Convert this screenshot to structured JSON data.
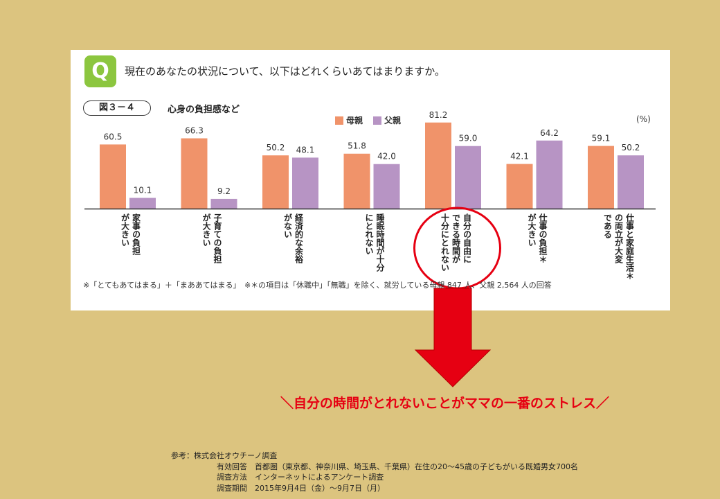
{
  "panel": {
    "q_badge": "Q",
    "question": "現在のあなたの状況について、以下はどれくらいあてはまりますか。",
    "figure_number": "図３－４",
    "figure_title": "心身の負担感など",
    "unit": "(%)",
    "note": "※「とてもあてはまる」＋「まああてはまる」　※＊の項目は「休職中」「無職」を除く、就労している母親 847 人、父親 2,564 人の回答"
  },
  "chart_data": {
    "type": "bar",
    "title": "心身の負担感など",
    "unit": "(%)",
    "categories": [
      "家事の負担が大きい",
      "子育ての負担が大きい",
      "経済的な余裕がない",
      "睡眠時間が十分にとれない",
      "自分の自由にできる時間が十分にとれない",
      "仕事の負担が大きい＊",
      "仕事と家庭生活の両立が大変である＊"
    ],
    "category_lines": [
      [
        "家事の負担",
        "が大きい"
      ],
      [
        "子育ての負担",
        "が大きい"
      ],
      [
        "経済的な余裕",
        "がない"
      ],
      [
        "睡眠時間が十分",
        "にとれない"
      ],
      [
        "自分の自由に",
        "できる時間が",
        "十分にとれない"
      ],
      [
        "仕事の負担＊",
        "が大きい"
      ],
      [
        "仕事と家庭生活＊",
        "の両立が大変",
        "である"
      ]
    ],
    "series": [
      {
        "name": "母親",
        "color": "#f0936a",
        "values": [
          60.5,
          66.3,
          50.2,
          51.8,
          81.2,
          42.1,
          59.1
        ]
      },
      {
        "name": "父親",
        "color": "#b794c4",
        "values": [
          10.1,
          9.2,
          48.1,
          42.0,
          59.0,
          64.2,
          50.2
        ]
      }
    ],
    "value_labels": [
      [
        "60.5",
        "66.3",
        "50.2",
        "51.8",
        "81.2",
        "42.1",
        "59.1"
      ],
      [
        "10.1",
        "9.2",
        "48.1",
        "42.0",
        "59.0",
        "64.2",
        "50.2"
      ]
    ],
    "ylim": [
      0,
      100
    ],
    "legend_position": "top-center",
    "grid": false,
    "highlight_category_index": 4
  },
  "callout": "＼自分の時間がとれないことがママの一番のストレス／",
  "reference": {
    "line1": "参考：株式会社オウチーノ調査",
    "line2": "有効回答　首都圏（東京都、神奈川県、埼玉県、千葉県）在住の20～45歳の子どもがいる既婚男女700名",
    "line3": "調査方法　インターネットによるアンケート調査",
    "line4": "調査期間　2015年9月4日（金）～9月7日（月）"
  },
  "colors": {
    "background": "#dcc47f",
    "mother": "#f0936a",
    "father": "#b794c4",
    "accent_red": "#e60012",
    "q_badge": "#8cc63f"
  }
}
